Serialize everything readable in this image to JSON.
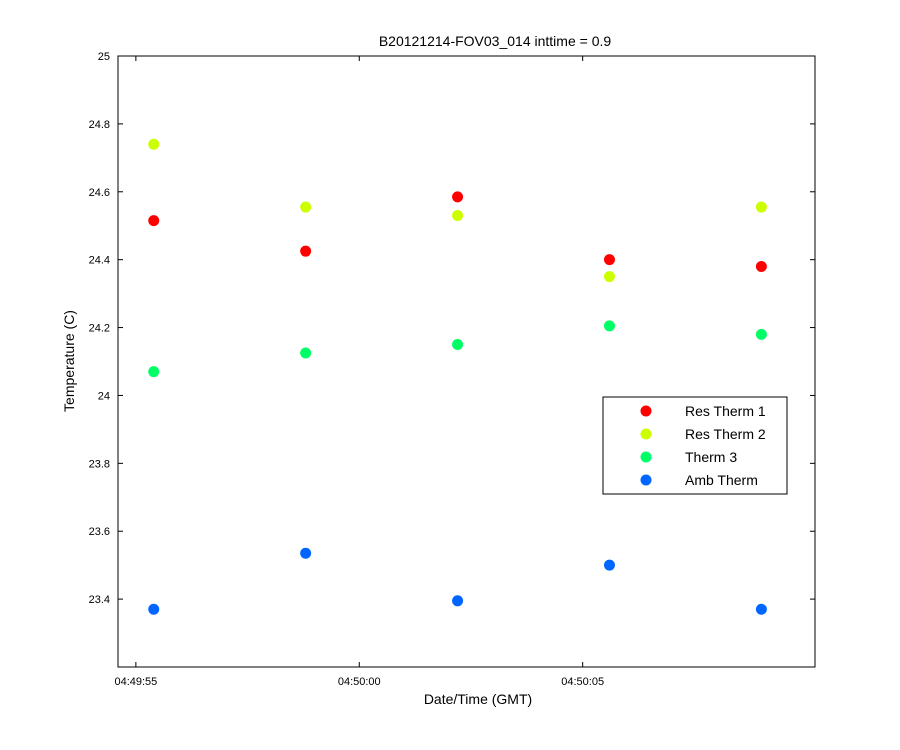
{
  "chart_data": {
    "type": "scatter",
    "title": "B20121214-FOV03_014 inttime = 0.9",
    "xlabel": "Date/Time (GMT)",
    "ylabel": "Temperature (C)",
    "x_ticks": [
      "04:49:55",
      "04:50:00",
      "04:50:05"
    ],
    "y_ticks": [
      "23.4",
      "23.6",
      "23.8",
      "24",
      "24.2",
      "24.4",
      "24.6",
      "24.8",
      "25"
    ],
    "ylim": [
      23.2,
      25
    ],
    "xlim": [
      "04:49:54.6",
      "04:50:10.2"
    ],
    "x": [
      "04:49:55.4",
      "04:49:58.8",
      "04:50:02.2",
      "04:50:05.6",
      "04:50:09.0"
    ],
    "series": [
      {
        "name": "Res Therm 1",
        "color": "#ff0000",
        "values": [
          24.515,
          24.425,
          24.585,
          24.4,
          24.38
        ]
      },
      {
        "name": "Res Therm 2",
        "color": "#ccff00",
        "values": [
          24.74,
          24.555,
          24.53,
          24.35,
          24.555
        ]
      },
      {
        "name": "Therm 3",
        "color": "#00ff66",
        "values": [
          24.07,
          24.125,
          24.15,
          24.205,
          24.18
        ]
      },
      {
        "name": "Amb Therm",
        "color": "#0066ff",
        "values": [
          23.37,
          23.535,
          23.395,
          23.5,
          23.37
        ]
      }
    ],
    "grid": false,
    "legend_position": "right"
  }
}
